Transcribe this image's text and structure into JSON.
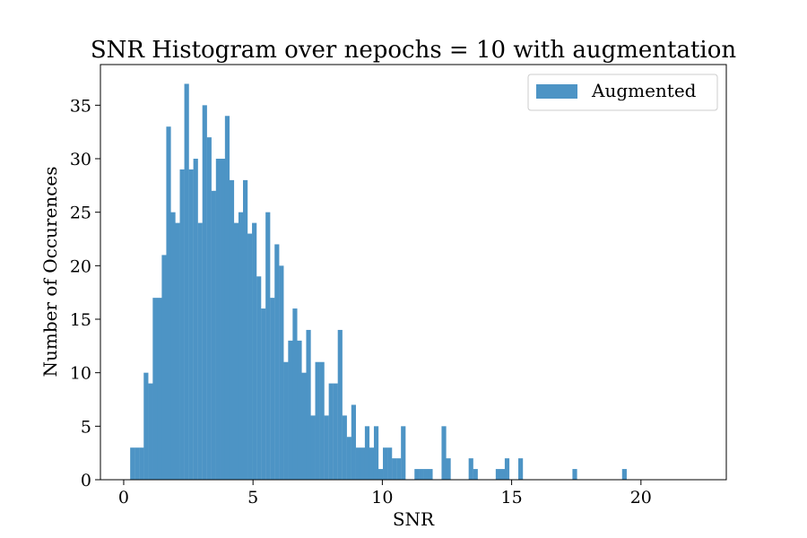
{
  "chart_data": {
    "type": "bar",
    "title": "SNR Histogram over nepochs = 10 with augmentation",
    "xlabel": "SNR",
    "ylabel": "Number of Occurences",
    "xlim": [
      -0.9,
      23.3
    ],
    "ylim": [
      0,
      38.8
    ],
    "x_ticks": [
      "0",
      "5",
      "10",
      "15",
      "20"
    ],
    "x_tick_values": [
      0,
      5,
      10,
      15,
      20
    ],
    "y_ticks": [
      "0",
      "5",
      "10",
      "15",
      "20",
      "25",
      "30",
      "35"
    ],
    "y_tick_values": [
      0,
      5,
      10,
      15,
      20,
      25,
      30,
      35
    ],
    "bin_start": 0.25,
    "bin_width": 0.1745,
    "grid": false,
    "legend_position": "top-right",
    "series": [
      {
        "name": "Augmented",
        "color": "#4d94c5",
        "values": [
          3,
          3,
          3,
          10,
          9,
          17,
          17,
          21,
          33,
          25,
          24,
          29,
          37,
          29,
          30,
          24,
          35,
          32,
          27,
          30,
          30,
          34,
          28,
          24,
          25,
          28,
          23,
          24,
          19,
          16,
          25,
          17,
          22,
          20,
          11,
          13,
          16,
          13,
          10,
          14,
          6,
          11,
          11,
          6,
          9,
          9,
          14,
          6,
          4,
          7,
          3,
          3,
          5,
          3,
          5,
          1,
          3,
          3,
          2,
          2,
          5,
          0,
          0,
          1,
          1,
          1,
          1,
          0,
          0,
          5,
          2,
          0,
          0,
          0,
          0,
          2,
          1,
          0,
          0,
          0,
          0,
          1,
          1,
          2,
          0,
          0,
          2,
          0,
          0,
          0,
          0,
          0,
          0,
          0,
          0,
          0,
          0,
          0,
          1,
          0,
          0,
          0,
          0,
          0,
          0,
          0,
          0,
          0,
          0,
          1
        ]
      }
    ]
  }
}
